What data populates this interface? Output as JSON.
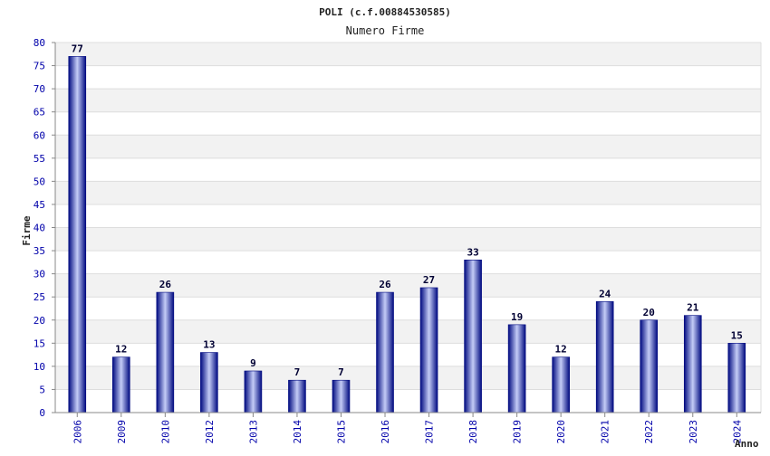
{
  "chart_data": {
    "type": "bar",
    "title": "POLI (c.f.00884530585)",
    "subtitle": "Numero Firme",
    "xlabel": "Anno",
    "ylabel": "Firme",
    "ylim": [
      0,
      80
    ],
    "ytick_step": 5,
    "grid": true,
    "categories": [
      "2006",
      "2009",
      "2010",
      "2012",
      "2013",
      "2014",
      "2015",
      "2016",
      "2017",
      "2018",
      "2019",
      "2020",
      "2021",
      "2022",
      "2023",
      "2024"
    ],
    "values": [
      77,
      12,
      26,
      13,
      9,
      7,
      7,
      26,
      27,
      33,
      19,
      12,
      24,
      20,
      21,
      15
    ],
    "colors": {
      "bar_dark": "#000a80",
      "bar_light": "#c4ccf6",
      "band": "#f2f2f2",
      "grid": "#dddddd",
      "tick_text": "#0000aa"
    }
  }
}
